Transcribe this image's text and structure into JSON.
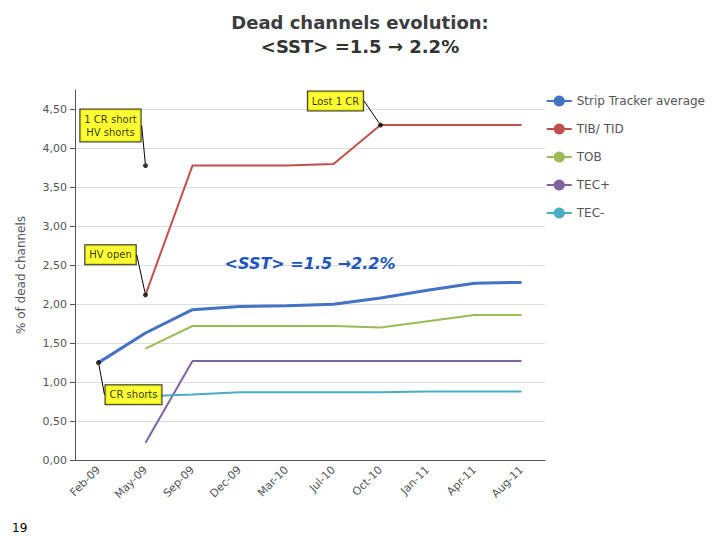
{
  "chart_data": {
    "type": "line",
    "title": "Dead channels evolution:",
    "subtitle": "<SST> =1.5 → 2.2%",
    "y_label": "% of dead channels",
    "categories": [
      "Feb-09",
      "May-09",
      "Sep-09",
      "Dec-09",
      "Mar-10",
      "Jul-10",
      "Oct-10",
      "Jan-11",
      "Apr-11",
      "Aug-11"
    ],
    "series": [
      {
        "name": "Strip Tracker average",
        "color": "#4472C4",
        "values": [
          1.25,
          1.63,
          1.93,
          1.97,
          1.98,
          2.0,
          2.08,
          2.18,
          2.27,
          2.28
        ]
      },
      {
        "name": "TIB/ TID",
        "color": "#C0504D",
        "values": [
          null,
          2.12,
          3.78,
          3.78,
          3.78,
          3.8,
          4.3,
          4.3,
          4.3,
          4.3
        ]
      },
      {
        "name": "TOB",
        "color": "#9BBB59",
        "values": [
          null,
          1.43,
          1.72,
          1.72,
          1.72,
          1.72,
          1.7,
          1.78,
          1.86,
          1.86
        ]
      },
      {
        "name": "TEC+",
        "color": "#8064A2",
        "values": [
          null,
          0.22,
          1.27,
          1.27,
          1.27,
          1.27,
          1.27,
          1.27,
          1.27,
          1.27
        ]
      },
      {
        "name": "TEC-",
        "color": "#4BACC6",
        "values": [
          null,
          0.82,
          0.84,
          0.87,
          0.87,
          0.87,
          0.87,
          0.88,
          0.88,
          0.88
        ]
      }
    ],
    "ylim": [
      0.0,
      4.75
    ],
    "yticks": [
      {
        "value": 0.0,
        "label": "0,00"
      },
      {
        "value": 0.5,
        "label": "0,50"
      },
      {
        "value": 1.0,
        "label": "1,00"
      },
      {
        "value": 1.5,
        "label": "1,50"
      },
      {
        "value": 2.0,
        "label": "2,00"
      },
      {
        "value": 2.5,
        "label": "2,50"
      },
      {
        "value": 3.0,
        "label": "3,00"
      },
      {
        "value": 3.5,
        "label": "3,50"
      },
      {
        "value": 4.0,
        "label": "4,00"
      },
      {
        "value": 4.5,
        "label": "4,50"
      }
    ],
    "grid": true,
    "legend": "right",
    "annotations": [
      {
        "text": "Lost 1 CR",
        "x": "Oct-10",
        "y": 4.3
      },
      {
        "text": "1 CR short\nHV shorts",
        "x": "May-09",
        "y": 3.78
      },
      {
        "text": "HV open",
        "x": "May-09",
        "y": 2.12
      },
      {
        "text": "CR shorts",
        "x": "Feb-09",
        "y": 1.25
      },
      {
        "text": "<SST> =1.5 →2.2%"
      }
    ],
    "footnote": "19"
  }
}
